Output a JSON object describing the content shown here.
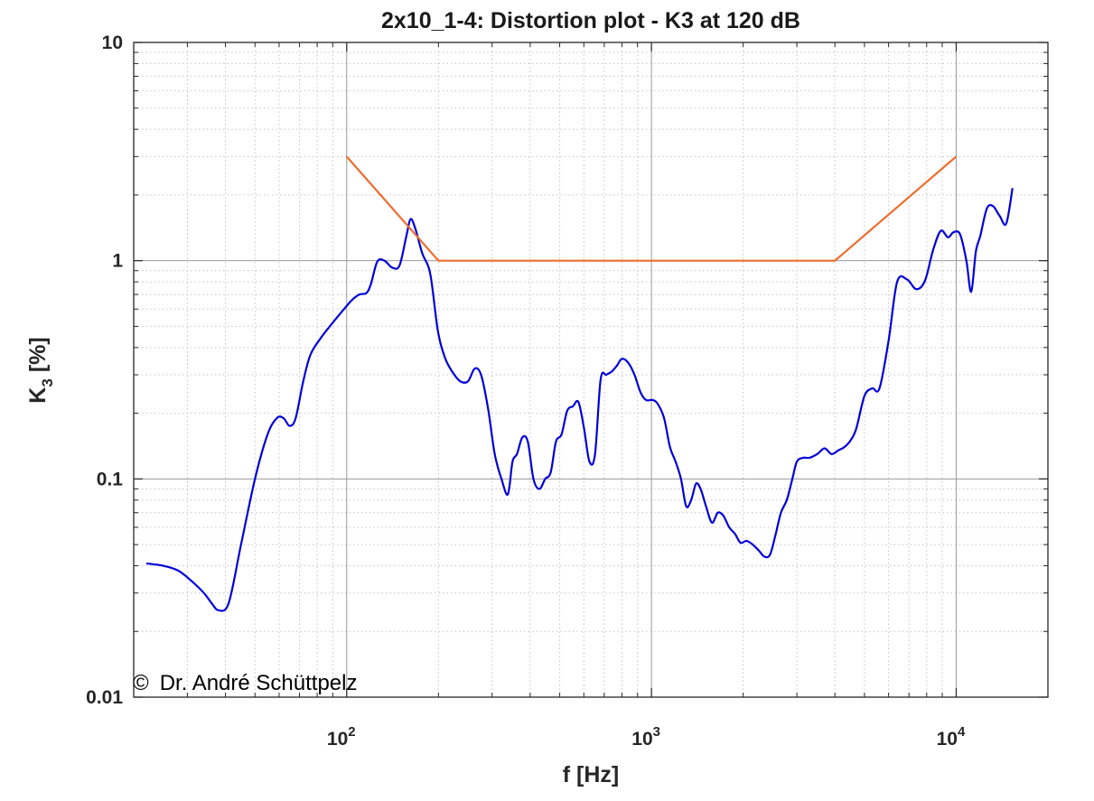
{
  "chart_data": {
    "type": "line",
    "title": "2x10_1-4: Distortion plot - K3 at 120 dB",
    "xlabel": "f [Hz]",
    "ylabel_main": "K",
    "ylabel_sub": "3",
    "ylabel_unit": "[%]",
    "x_scale": "log",
    "y_scale": "log",
    "xlim": [
      20,
      20000
    ],
    "ylim": [
      0.01,
      10
    ],
    "grid": true,
    "x_ticks": [
      {
        "value": 100,
        "base": "10",
        "exp": "2"
      },
      {
        "value": 1000,
        "base": "10",
        "exp": "3"
      },
      {
        "value": 10000,
        "base": "10",
        "exp": "4"
      }
    ],
    "y_ticks": [
      {
        "value": 0.01,
        "label": "0.01"
      },
      {
        "value": 0.1,
        "label": "0.1"
      },
      {
        "value": 1,
        "label": "1"
      },
      {
        "value": 10,
        "label": "10"
      }
    ],
    "annotation": {
      "symbol": "©",
      "text": "Dr. André Schüttpelz"
    },
    "series": [
      {
        "color": "#0000d8",
        "x": [
          22,
          25,
          28,
          31,
          34,
          36,
          38,
          41,
          45,
          50,
          55,
          59,
          62,
          65,
          68,
          72,
          76,
          82,
          90,
          98,
          104,
          110,
          116,
          120,
          126,
          133,
          141,
          149,
          157,
          162,
          168,
          177,
          188,
          199,
          210,
          222,
          236,
          250,
          263,
          276,
          291,
          306,
          322,
          338,
          350,
          362,
          377,
          393,
          410,
          429,
          448,
          467,
          486,
          507,
          529,
          552,
          576,
          601,
          626,
          653,
          681,
          711,
          740,
          770,
          800,
          840,
          880,
          920,
          960,
          1010,
          1050,
          1100,
          1150,
          1200,
          1250,
          1300,
          1350,
          1400,
          1450,
          1510,
          1580,
          1650,
          1720,
          1800,
          1880,
          1960,
          2050,
          2150,
          2250,
          2350,
          2450,
          2550,
          2660,
          2780,
          2900,
          3000,
          3150,
          3300,
          3500,
          3700,
          3900,
          4100,
          4300,
          4500,
          4700,
          5000,
          5300,
          5600,
          6000,
          6400,
          6900,
          7400,
          7900,
          8400,
          8900,
          9400,
          9800,
          10300,
          10800,
          11200,
          11600,
          12000,
          12600,
          13200,
          13900,
          14600,
          15300
        ],
        "y": [
          0.041,
          0.04,
          0.038,
          0.034,
          0.03,
          0.027,
          0.025,
          0.027,
          0.05,
          0.1,
          0.16,
          0.19,
          0.19,
          0.175,
          0.19,
          0.28,
          0.37,
          0.44,
          0.52,
          0.6,
          0.66,
          0.7,
          0.71,
          0.78,
          0.99,
          1.0,
          0.93,
          0.95,
          1.3,
          1.55,
          1.4,
          1.08,
          0.87,
          0.48,
          0.36,
          0.31,
          0.28,
          0.28,
          0.32,
          0.3,
          0.21,
          0.13,
          0.1,
          0.085,
          0.12,
          0.13,
          0.155,
          0.148,
          0.1,
          0.09,
          0.1,
          0.107,
          0.148,
          0.16,
          0.205,
          0.215,
          0.225,
          0.17,
          0.12,
          0.13,
          0.285,
          0.3,
          0.31,
          0.33,
          0.355,
          0.34,
          0.3,
          0.25,
          0.23,
          0.23,
          0.22,
          0.19,
          0.14,
          0.12,
          0.1,
          0.075,
          0.08,
          0.095,
          0.09,
          0.075,
          0.063,
          0.07,
          0.068,
          0.06,
          0.056,
          0.051,
          0.052,
          0.05,
          0.047,
          0.044,
          0.045,
          0.055,
          0.07,
          0.08,
          0.1,
          0.12,
          0.125,
          0.125,
          0.13,
          0.138,
          0.13,
          0.135,
          0.14,
          0.15,
          0.17,
          0.24,
          0.26,
          0.26,
          0.43,
          0.8,
          0.82,
          0.74,
          0.81,
          1.12,
          1.37,
          1.28,
          1.35,
          1.32,
          1.0,
          0.72,
          1.1,
          1.3,
          1.73,
          1.78,
          1.6,
          1.48,
          2.15
        ]
      },
      {
        "color": "#ed6d2f",
        "x": [
          100,
          200,
          4000,
          10000
        ],
        "y": [
          3,
          1,
          1,
          3
        ]
      }
    ]
  }
}
